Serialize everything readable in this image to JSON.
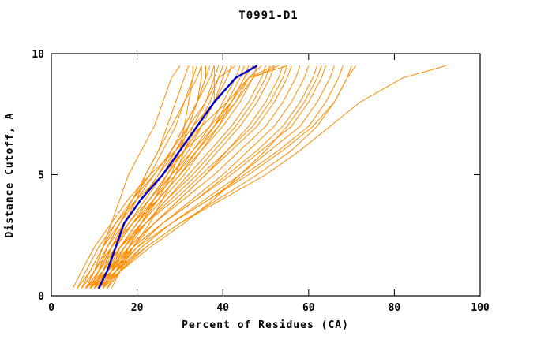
{
  "chart_data": {
    "type": "line",
    "title": "T0991-D1",
    "xlabel": "Percent of Residues (CA)",
    "ylabel": "Distance Cutoff, A",
    "xlim": [
      0,
      100
    ],
    "ylim": [
      0,
      10
    ],
    "x_ticks": [
      0,
      20,
      40,
      60,
      80,
      100
    ],
    "y_ticks": [
      0,
      5,
      10
    ],
    "grid": false,
    "legend": "none",
    "series_color": "#FF8C00",
    "highlight_color": "#0000CC",
    "axis_color": "#000000",
    "background_color": "#FFFFFF",
    "y_grid": [
      0.3,
      1,
      2,
      3,
      4,
      5,
      6,
      7,
      8,
      9,
      9.5
    ],
    "orange_series": [
      [
        8,
        10,
        12,
        14,
        16,
        18,
        21,
        24,
        26,
        28,
        30
      ],
      [
        9,
        11,
        14,
        17,
        20,
        22,
        25,
        27,
        29,
        31,
        32
      ],
      [
        7,
        10,
        13,
        16,
        19,
        23,
        26,
        29,
        31,
        33,
        34
      ],
      [
        10,
        12,
        15,
        18,
        22,
        26,
        29,
        32,
        34,
        36,
        36
      ],
      [
        6,
        9,
        12,
        16,
        20,
        24,
        28,
        31,
        34,
        37,
        38
      ],
      [
        11,
        13,
        16,
        20,
        24,
        28,
        32,
        35,
        38,
        40,
        41
      ],
      [
        8,
        11,
        15,
        19,
        23,
        27,
        31,
        35,
        38,
        41,
        42
      ],
      [
        12,
        14,
        17,
        21,
        25,
        30,
        34,
        38,
        41,
        44,
        45
      ],
      [
        9,
        12,
        16,
        21,
        26,
        31,
        35,
        39,
        42,
        45,
        46
      ],
      [
        7,
        10,
        14,
        19,
        25,
        30,
        35,
        40,
        44,
        47,
        48
      ],
      [
        13,
        15,
        18,
        22,
        27,
        32,
        37,
        42,
        46,
        49,
        50
      ],
      [
        10,
        13,
        17,
        22,
        28,
        34,
        39,
        44,
        48,
        51,
        52
      ],
      [
        8,
        12,
        16,
        22,
        29,
        35,
        41,
        46,
        50,
        53,
        54
      ],
      [
        11,
        14,
        18,
        24,
        30,
        36,
        42,
        48,
        52,
        55,
        56
      ],
      [
        9,
        13,
        18,
        24,
        31,
        38,
        44,
        50,
        54,
        57,
        58
      ],
      [
        12,
        15,
        20,
        26,
        33,
        40,
        46,
        52,
        56,
        59,
        60
      ],
      [
        10,
        14,
        19,
        26,
        34,
        41,
        48,
        54,
        58,
        61,
        62
      ],
      [
        8,
        13,
        19,
        26,
        34,
        42,
        49,
        56,
        60,
        63,
        64
      ],
      [
        13,
        16,
        21,
        28,
        36,
        44,
        51,
        58,
        62,
        65,
        66
      ],
      [
        11,
        15,
        21,
        28,
        37,
        45,
        53,
        60,
        64,
        67,
        68
      ],
      [
        9,
        14,
        20,
        28,
        37,
        46,
        54,
        61,
        66,
        69,
        71
      ],
      [
        12,
        16,
        22,
        30,
        40,
        50,
        58,
        65,
        72,
        82,
        92
      ],
      [
        10,
        15,
        22,
        30,
        39,
        48,
        56,
        62,
        66,
        69,
        70
      ],
      [
        9,
        11,
        13,
        16,
        19,
        22,
        25,
        28,
        31,
        34,
        35
      ],
      [
        10,
        12,
        14,
        17,
        21,
        25,
        28,
        31,
        34,
        36,
        37
      ],
      [
        8,
        10,
        13,
        17,
        21,
        25,
        29,
        33,
        36,
        38,
        39
      ],
      [
        11,
        13,
        15,
        19,
        23,
        27,
        31,
        34,
        37,
        39,
        40
      ],
      [
        7,
        9,
        12,
        15,
        19,
        24,
        28,
        32,
        36,
        39,
        43
      ],
      [
        12,
        14,
        16,
        20,
        24,
        29,
        33,
        37,
        40,
        43,
        44
      ],
      [
        10,
        13,
        16,
        20,
        25,
        30,
        34,
        38,
        42,
        45,
        47
      ],
      [
        9,
        12,
        15,
        19,
        24,
        29,
        34,
        39,
        43,
        46,
        49
      ],
      [
        11,
        14,
        17,
        22,
        27,
        33,
        38,
        43,
        47,
        50,
        51
      ],
      [
        8,
        11,
        14,
        18,
        23,
        28,
        33,
        38,
        43,
        47,
        53
      ],
      [
        13,
        16,
        19,
        24,
        30,
        36,
        41,
        47,
        51,
        54,
        55
      ],
      [
        6,
        8,
        11,
        15,
        20,
        26,
        31,
        37,
        42,
        46,
        55
      ],
      [
        5,
        7,
        10,
        14,
        18,
        23,
        29,
        35,
        41,
        46,
        52
      ],
      [
        14,
        16,
        18,
        21,
        24,
        27,
        30,
        32,
        34,
        35,
        35
      ],
      [
        12,
        15,
        19,
        23,
        26,
        29,
        31,
        33,
        38,
        38,
        38
      ],
      [
        11,
        16,
        23,
        31,
        38,
        44,
        50,
        55,
        59,
        62,
        63
      ],
      [
        9,
        13,
        17,
        21,
        25,
        28,
        30,
        31,
        32,
        33,
        33
      ]
    ],
    "blue_series": [
      11,
      13,
      15,
      17,
      21,
      26,
      30,
      34,
      38,
      43,
      48
    ]
  }
}
